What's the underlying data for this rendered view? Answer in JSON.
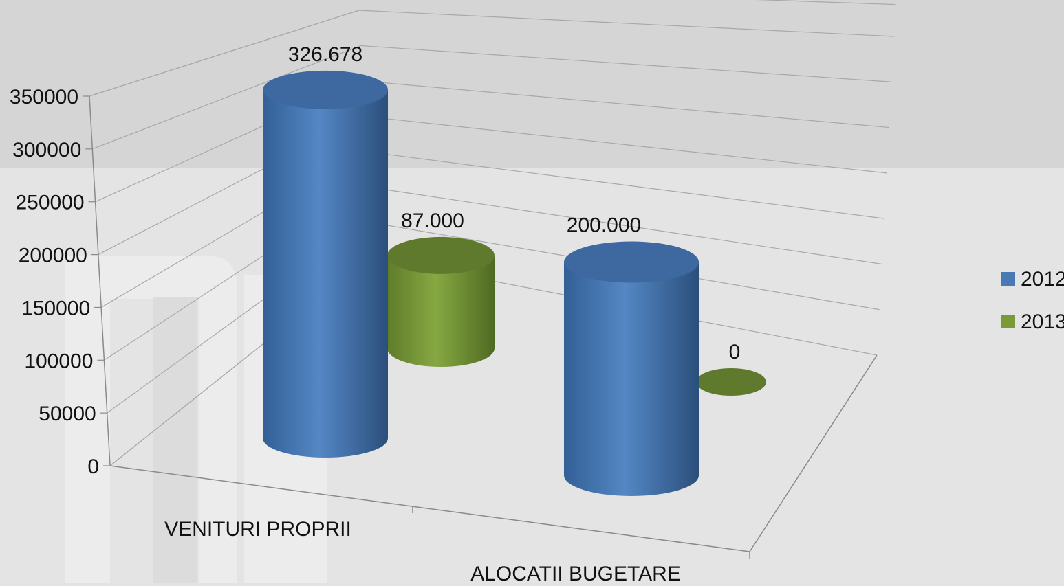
{
  "chart_data": {
    "type": "bar",
    "style": "3d-cylinder",
    "title": "",
    "xlabel": "",
    "ylabel": "",
    "categories": [
      "VENITURI PROPRII",
      "ALOCATII BUGETARE"
    ],
    "series": [
      {
        "name": "2012",
        "color": "#4a7ab5",
        "values": [
          326678,
          200000
        ],
        "labels": [
          "326.678",
          "200.000"
        ]
      },
      {
        "name": "2013",
        "color": "#7a9a3a",
        "values": [
          87000,
          0
        ],
        "labels": [
          "87.000",
          "0"
        ]
      }
    ],
    "ylim": [
      0,
      350000
    ],
    "yticks": [
      "0",
      "50000",
      "100000",
      "150000",
      "200000",
      "250000",
      "300000",
      "350000"
    ],
    "grid": true,
    "legend": "right"
  }
}
